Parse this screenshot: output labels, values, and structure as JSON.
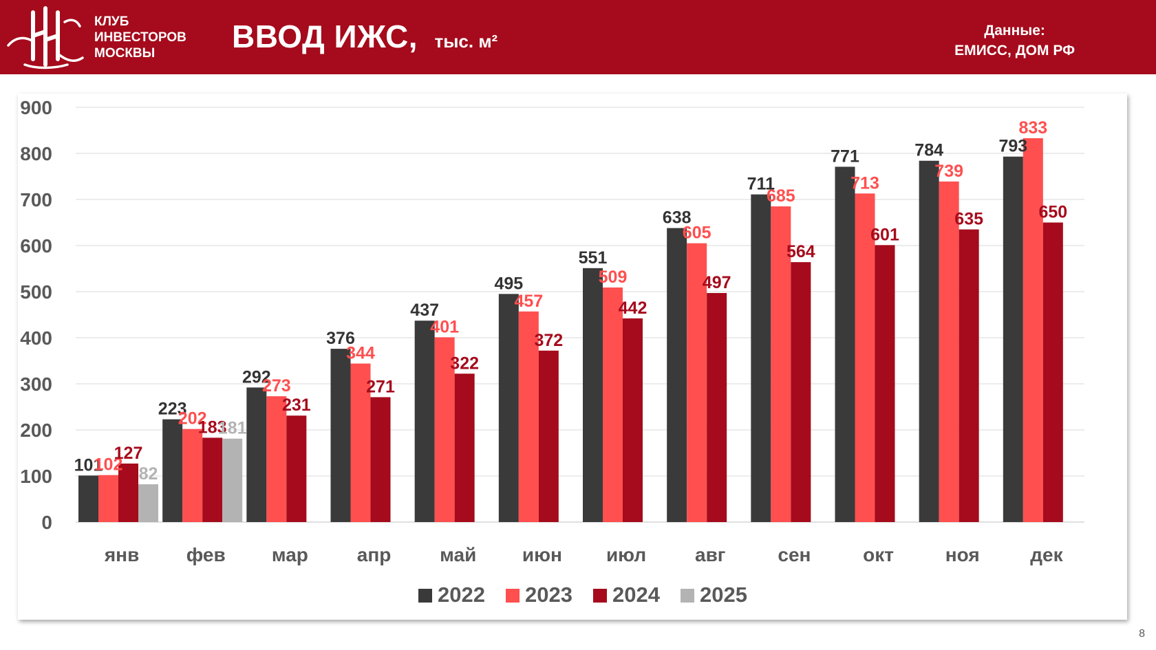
{
  "header": {
    "logo_lines": [
      "КЛУБ",
      "ИНВЕСТОРОВ",
      "МОСКВЫ"
    ],
    "title": "ВВОД ИЖС,",
    "subtitle": "тыс. м²",
    "source_label": "Данные:",
    "source_value": "ЕМИСС, ДОМ РФ"
  },
  "page_number": "8",
  "colors": {
    "brand": "#a50b1c",
    "series_2022": "#3a3a3a",
    "series_2023": "#ff4f4f",
    "series_2024": "#a50b1c",
    "series_2025": "#b3b3b3",
    "axis_text": "#595959"
  },
  "chart_data": {
    "type": "bar",
    "categories": [
      "янв",
      "фев",
      "мар",
      "апр",
      "май",
      "июн",
      "июл",
      "авг",
      "сен",
      "окт",
      "ноя",
      "дек"
    ],
    "series": [
      {
        "name": "2022",
        "color": "#3a3a3a",
        "label_color": "#333333",
        "values": [
          101,
          223,
          292,
          376,
          437,
          495,
          551,
          638,
          711,
          771,
          784,
          793
        ]
      },
      {
        "name": "2023",
        "color": "#ff4f4f",
        "label_color": "#ff4f4f",
        "values": [
          102,
          202,
          273,
          344,
          401,
          457,
          509,
          605,
          685,
          713,
          739,
          833
        ]
      },
      {
        "name": "2024",
        "color": "#a50b1c",
        "label_color": "#a50b1c",
        "values": [
          127,
          183,
          231,
          271,
          322,
          372,
          442,
          497,
          564,
          601,
          635,
          650
        ]
      },
      {
        "name": "2025",
        "color": "#b3b3b3",
        "label_color": "#b3b3b3",
        "values": [
          82,
          181,
          null,
          null,
          null,
          null,
          null,
          null,
          null,
          null,
          null,
          null
        ]
      }
    ],
    "yticks": [
      0,
      100,
      200,
      300,
      400,
      500,
      600,
      700,
      800,
      900
    ],
    "ylim": [
      0,
      900
    ],
    "grid": true,
    "legend": "bottom"
  }
}
